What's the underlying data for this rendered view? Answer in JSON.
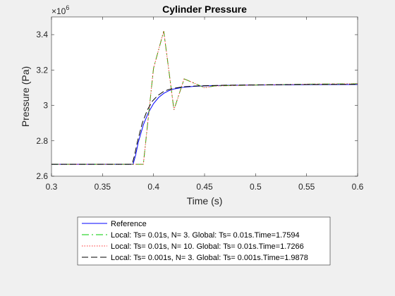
{
  "chart_data": {
    "type": "line",
    "title": "Cylinder Pressure",
    "xlabel": "Time (s)",
    "ylabel": "Pressure (Pa)",
    "y_exponent_base": "×10",
    "y_exponent_power": "6",
    "xlim": [
      0.3,
      0.6
    ],
    "ylim": [
      2.6,
      3.5
    ],
    "xticks": [
      0.3,
      0.35,
      0.4,
      0.45,
      0.5,
      0.55,
      0.6
    ],
    "xtick_labels": [
      "0.3",
      "0.35",
      "0.4",
      "0.45",
      "0.5",
      "0.55",
      "0.6"
    ],
    "yticks": [
      2.6,
      2.8,
      3.0,
      3.2,
      3.4
    ],
    "ytick_labels": [
      "2.6",
      "2.8",
      "3",
      "3.2",
      "3.4"
    ],
    "grid": false,
    "legend_placement": "below-outside",
    "series": [
      {
        "name": "Reference",
        "color": "#0000ff",
        "dash": "solid",
        "x": [
          0.3,
          0.38,
          0.3825,
          0.385,
          0.39,
          0.395,
          0.4,
          0.405,
          0.41,
          0.415,
          0.42,
          0.43,
          0.44,
          0.45,
          0.47,
          0.5,
          0.55,
          0.6
        ],
        "y": [
          2.667,
          2.667,
          2.72,
          2.79,
          2.89,
          2.96,
          3.01,
          3.045,
          3.068,
          3.083,
          3.093,
          3.103,
          3.108,
          3.11,
          3.113,
          3.115,
          3.117,
          3.118
        ]
      },
      {
        "name": "Local: Ts= 0.01s, N= 3. Global: Ts= 0.01s.Time=1.7594",
        "color": "#00cc00",
        "dash": "dashed",
        "x": [
          0.3,
          0.39,
          0.4,
          0.41,
          0.42,
          0.43,
          0.44,
          0.45,
          0.46,
          0.5,
          0.55,
          0.6
        ],
        "y": [
          2.667,
          2.667,
          3.21,
          3.42,
          2.975,
          3.15,
          3.125,
          3.1,
          3.11,
          3.115,
          3.12,
          3.122
        ]
      },
      {
        "name": "Local: Ts= 0.01s, N= 10. Global: Ts= 0.01s.Time=1.7266",
        "color": "#ff3333",
        "dash": "dotted",
        "x": [
          0.3,
          0.39,
          0.4,
          0.41,
          0.42,
          0.43,
          0.44,
          0.45,
          0.46,
          0.5,
          0.55,
          0.6
        ],
        "y": [
          2.667,
          2.667,
          3.21,
          3.42,
          2.975,
          3.15,
          3.125,
          3.1,
          3.11,
          3.115,
          3.12,
          3.122
        ]
      },
      {
        "name": "Local: Ts= 0.001s, N= 3. Global: Ts= 0.001s.Time=1.9878",
        "color": "#000000",
        "dash": "longdash",
        "x": [
          0.3,
          0.379,
          0.3815,
          0.384,
          0.389,
          0.394,
          0.399,
          0.404,
          0.409,
          0.414,
          0.419,
          0.429,
          0.44,
          0.45,
          0.47,
          0.5,
          0.55,
          0.6
        ],
        "y": [
          2.667,
          2.667,
          2.72,
          2.79,
          2.9,
          2.975,
          3.025,
          3.055,
          3.075,
          3.088,
          3.096,
          3.105,
          3.109,
          3.111,
          3.114,
          3.116,
          3.118,
          3.119
        ]
      }
    ]
  }
}
